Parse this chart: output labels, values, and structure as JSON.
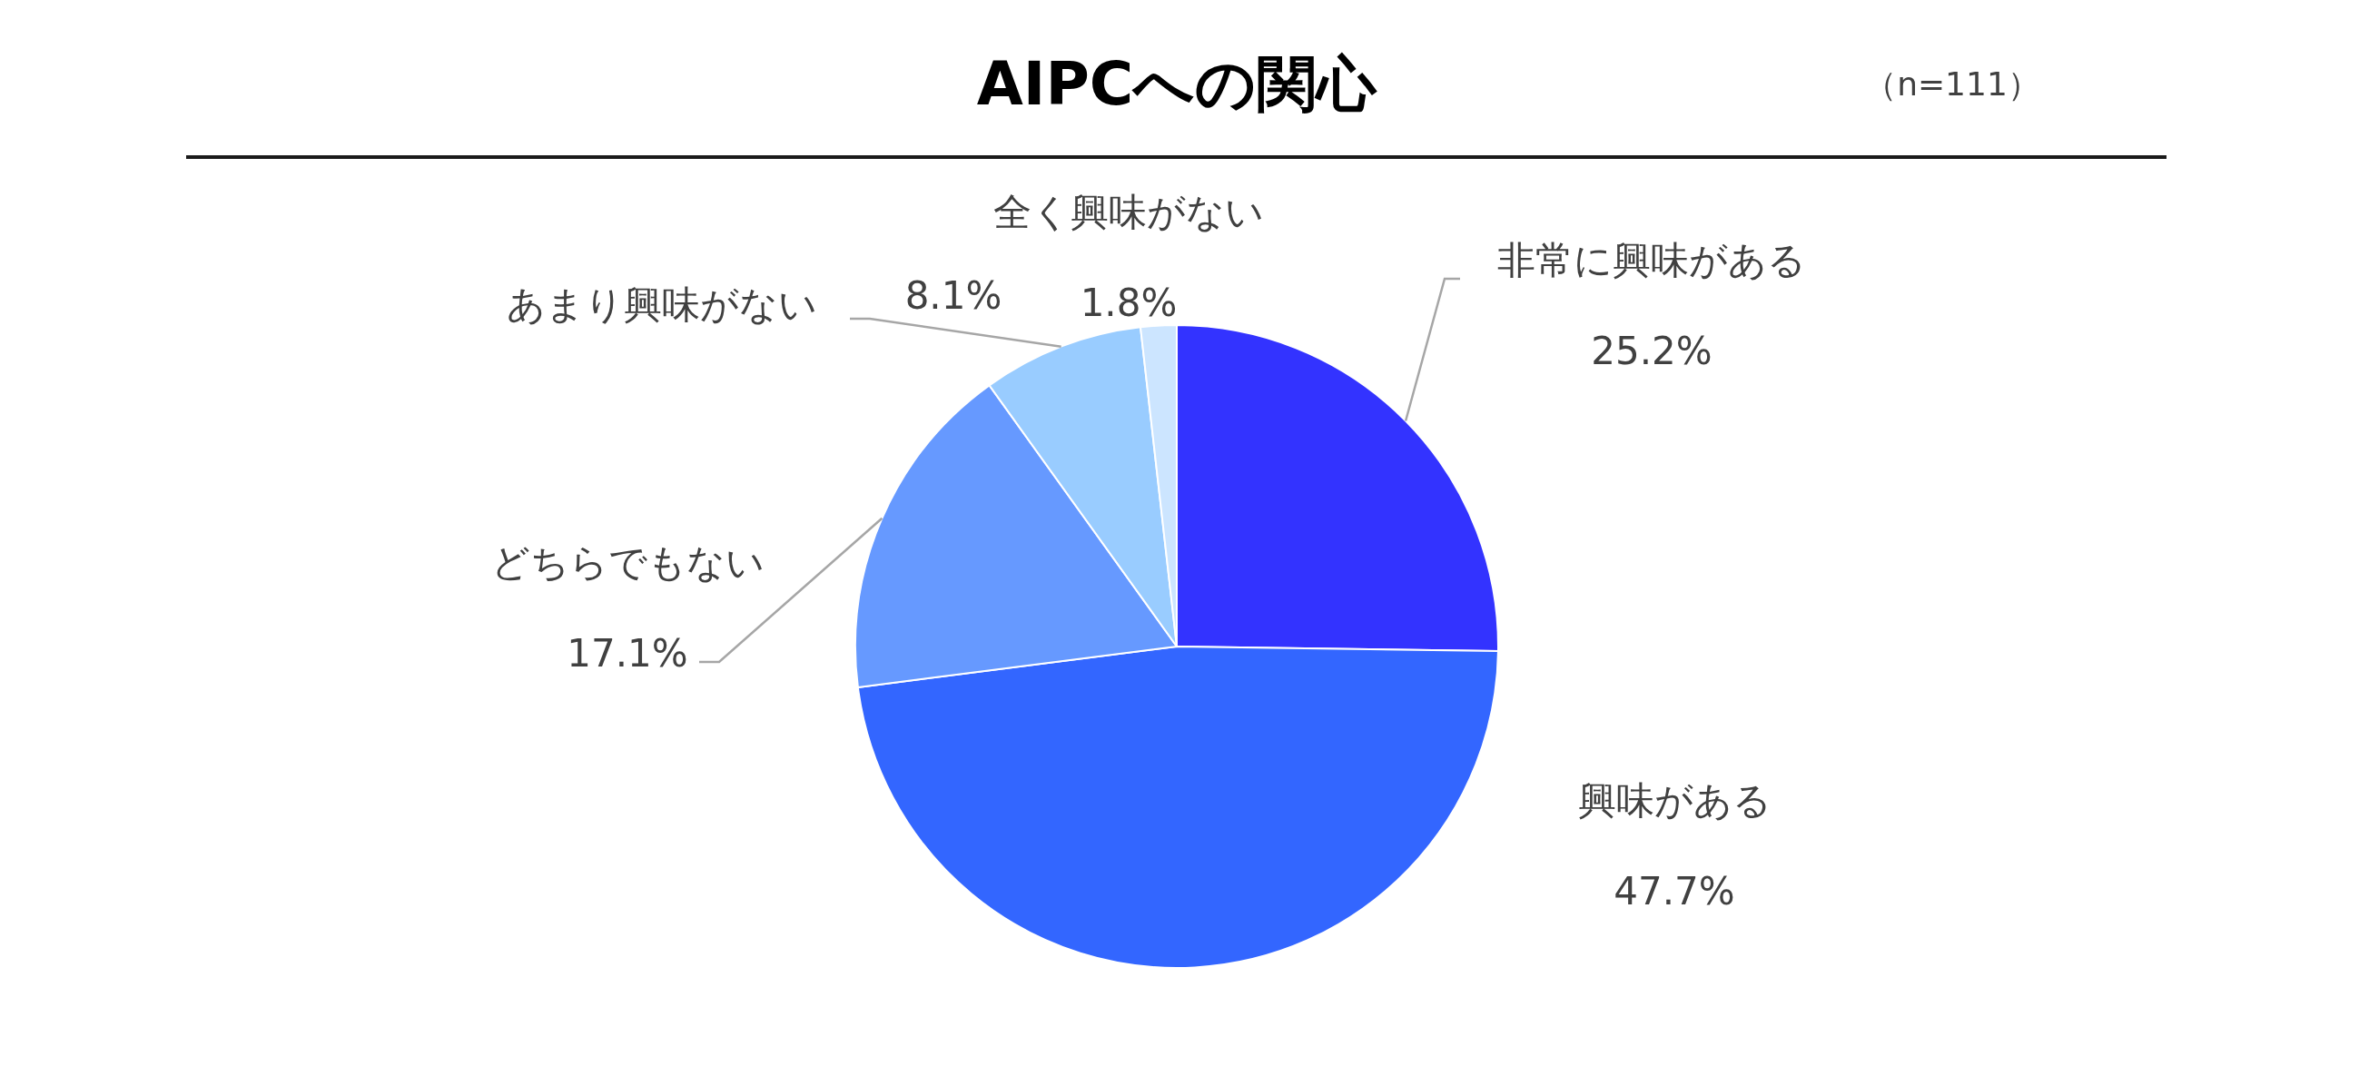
{
  "chart_data": {
    "type": "pie",
    "title": "AIPCへの関心",
    "annotations": [
      "（n=111）"
    ],
    "categories": [
      "非常に興味がある",
      "興味がある",
      "どちらでもない",
      "あまり興味がない",
      "全く興味がない"
    ],
    "values": [
      25.2,
      47.7,
      17.1,
      8.1,
      1.8
    ],
    "value_labels": [
      "25.2%",
      "47.7%",
      "17.1%",
      "8.1%",
      "1.8%"
    ],
    "colors": [
      "#3333ff",
      "#3366ff",
      "#6699ff",
      "#99ccff",
      "#cce5ff"
    ]
  }
}
